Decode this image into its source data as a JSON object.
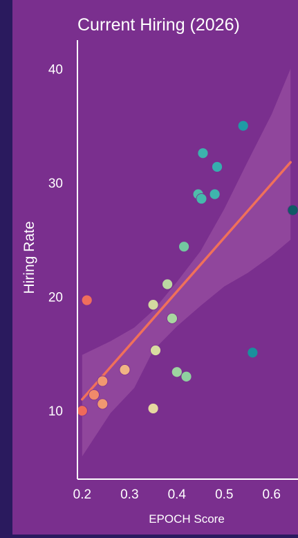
{
  "colors": {
    "background_outer": "#2a1a5e",
    "panel": "#7a2f8e",
    "axis": "#ffffff",
    "text": "#ffffff",
    "trend_line": "#f0705a",
    "confidence_band": "#a25aa8"
  },
  "chart_data": {
    "type": "scatter",
    "title": "Current Hiring (2026)",
    "xlabel": "EPOCH Score",
    "ylabel": "Hiring Rate",
    "xlim": [
      0.19,
      0.65
    ],
    "ylim": [
      4,
      43
    ],
    "x_ticks": [
      0.2,
      0.3,
      0.4,
      0.5,
      0.6
    ],
    "x_tick_labels": [
      "0.2",
      "0.3",
      "0.4",
      "0.5",
      "0.6"
    ],
    "y_ticks": [
      10,
      20,
      30,
      40
    ],
    "y_tick_labels": [
      "10",
      "20",
      "30",
      "40"
    ],
    "grid": false,
    "legend": "none",
    "points": [
      {
        "x": 0.2,
        "y": 10.0,
        "color": "#ef6a5a"
      },
      {
        "x": 0.225,
        "y": 11.4,
        "color": "#f08a6a"
      },
      {
        "x": 0.243,
        "y": 12.6,
        "color": "#f09870"
      },
      {
        "x": 0.243,
        "y": 10.6,
        "color": "#f09870"
      },
      {
        "x": 0.21,
        "y": 19.7,
        "color": "#ef6e5c"
      },
      {
        "x": 0.29,
        "y": 13.6,
        "color": "#f0b484"
      },
      {
        "x": 0.35,
        "y": 10.2,
        "color": "#e6d7a0"
      },
      {
        "x": 0.355,
        "y": 15.3,
        "color": "#d8dba0"
      },
      {
        "x": 0.35,
        "y": 19.3,
        "color": "#d3d9a0"
      },
      {
        "x": 0.38,
        "y": 21.1,
        "color": "#bcd8a2"
      },
      {
        "x": 0.39,
        "y": 18.1,
        "color": "#a9d6a0"
      },
      {
        "x": 0.4,
        "y": 13.4,
        "color": "#9ed3a0"
      },
      {
        "x": 0.42,
        "y": 13.0,
        "color": "#8fd0a0"
      },
      {
        "x": 0.415,
        "y": 24.4,
        "color": "#73c7a0"
      },
      {
        "x": 0.445,
        "y": 29.0,
        "color": "#4fbdaa"
      },
      {
        "x": 0.452,
        "y": 28.6,
        "color": "#45b9ac"
      },
      {
        "x": 0.48,
        "y": 29.0,
        "color": "#3fb5ad"
      },
      {
        "x": 0.455,
        "y": 32.6,
        "color": "#3cb2ad"
      },
      {
        "x": 0.485,
        "y": 31.4,
        "color": "#36aeaf"
      },
      {
        "x": 0.54,
        "y": 35.0,
        "color": "#1f9aa5"
      },
      {
        "x": 0.56,
        "y": 15.1,
        "color": "#1a8f9d"
      },
      {
        "x": 0.645,
        "y": 27.6,
        "color": "#115a66"
      }
    ],
    "trend_line": {
      "x": [
        0.2,
        0.64
      ],
      "y": [
        11.0,
        31.8
      ]
    },
    "confidence_band": {
      "x": [
        0.2,
        0.26,
        0.31,
        0.35,
        0.4,
        0.45,
        0.5,
        0.55,
        0.6,
        0.64
      ],
      "upper": [
        14.9,
        16.1,
        17.3,
        18.8,
        21.3,
        24.0,
        27.7,
        31.9,
        36.0,
        40.0
      ],
      "lower": [
        6.0,
        9.8,
        12.0,
        15.3,
        17.4,
        19.2,
        20.9,
        22.1,
        23.6,
        25.0
      ]
    }
  }
}
